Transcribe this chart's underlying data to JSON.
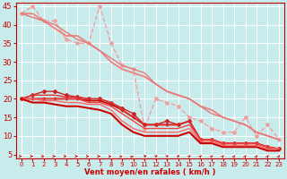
{
  "title": "",
  "xlabel": "Vent moyen/en rafales ( km/h )",
  "xlim": [
    -0.5,
    23.5
  ],
  "ylim": [
    4,
    46
  ],
  "yticks": [
    5,
    10,
    15,
    20,
    25,
    30,
    35,
    40,
    45
  ],
  "xticks": [
    0,
    1,
    2,
    3,
    4,
    5,
    6,
    7,
    8,
    9,
    10,
    11,
    12,
    13,
    14,
    15,
    16,
    17,
    18,
    19,
    20,
    21,
    22,
    23
  ],
  "bg_color": "#c8ecec",
  "grid_color": "#ffffff",
  "series": [
    {
      "y": [
        43,
        45,
        41,
        41,
        36,
        35,
        35,
        45,
        35,
        29,
        28,
        12,
        20,
        19,
        18,
        15,
        14,
        12,
        11,
        11,
        15,
        10,
        13,
        9
      ],
      "color": "#f0a0a0",
      "marker": "D",
      "markersize": 2,
      "linewidth": 1.0,
      "linestyle": "--"
    },
    {
      "y": [
        43,
        43,
        41,
        39,
        37,
        37,
        35,
        33,
        30,
        28,
        27,
        26,
        24,
        22,
        21,
        20,
        18,
        17,
        15,
        14,
        13,
        11,
        10,
        9
      ],
      "color": "#f08080",
      "marker": null,
      "markersize": 2,
      "linewidth": 1.3,
      "linestyle": "-"
    },
    {
      "y": [
        43,
        42,
        41,
        40,
        38,
        36,
        35,
        33,
        31,
        29,
        28,
        27,
        24,
        22,
        21,
        20,
        18,
        16,
        15,
        14,
        13,
        11,
        10,
        9
      ],
      "color": "#e87878",
      "marker": null,
      "markersize": 2,
      "linewidth": 1.0,
      "linestyle": "-"
    },
    {
      "y": [
        20,
        20,
        20,
        20,
        20,
        20,
        19.5,
        19.5,
        18.5,
        17,
        15,
        13,
        13,
        13,
        13,
        14,
        9,
        9,
        8,
        8,
        8,
        8,
        7,
        6.5
      ],
      "color": "#cc0000",
      "marker": "+",
      "markersize": 3,
      "linewidth": 1.3,
      "linestyle": "-"
    },
    {
      "y": [
        20,
        21,
        22,
        22,
        21,
        20.5,
        20,
        20,
        19,
        17.5,
        16,
        13,
        13,
        14,
        13,
        14,
        9,
        9,
        8,
        8,
        8,
        8,
        7,
        6.5
      ],
      "color": "#cc2020",
      "marker": "D",
      "markersize": 2,
      "linewidth": 1.0,
      "linestyle": "-"
    },
    {
      "y": [
        20,
        21,
        21,
        21,
        20.5,
        20.5,
        20,
        20,
        19,
        17,
        15,
        13,
        13,
        13,
        13,
        14,
        9,
        9,
        8,
        8,
        8,
        8,
        7,
        6.5
      ],
      "color": "#dd3030",
      "marker": null,
      "markersize": 2,
      "linewidth": 1.0,
      "linestyle": "-"
    },
    {
      "y": [
        20,
        20,
        20,
        20,
        20,
        20,
        19,
        19,
        18,
        16,
        14,
        12,
        12,
        12,
        12,
        13,
        9,
        9,
        8,
        8,
        8,
        8,
        7,
        6.5
      ],
      "color": "#ee4444",
      "marker": null,
      "markersize": 2,
      "linewidth": 1.0,
      "linestyle": "-"
    },
    {
      "y": [
        20,
        20,
        19.5,
        19.5,
        19,
        19,
        18.5,
        18.5,
        17,
        14,
        12,
        11,
        11,
        11,
        11,
        12,
        8.5,
        8.5,
        7.5,
        7.5,
        7.5,
        7.5,
        6.5,
        6.5
      ],
      "color": "#ff6666",
      "marker": null,
      "markersize": 2,
      "linewidth": 1.0,
      "linestyle": "-"
    },
    {
      "y": [
        20,
        19,
        19,
        18.5,
        18,
        18,
        17.5,
        17,
        16,
        13,
        11,
        10,
        10,
        10,
        10,
        11,
        8,
        8,
        7,
        7,
        7,
        7,
        6,
        6
      ],
      "color": "#cc0000",
      "marker": null,
      "markersize": 2,
      "linewidth": 1.5,
      "linestyle": "-"
    }
  ],
  "wind_arrows": {
    "y": 4.5,
    "color": "#cc0000",
    "angles": [
      90,
      90,
      90,
      90,
      90,
      90,
      90,
      90,
      100,
      110,
      125,
      135,
      140,
      145,
      150,
      155,
      160,
      160,
      160,
      165,
      165,
      165,
      165,
      165
    ]
  }
}
